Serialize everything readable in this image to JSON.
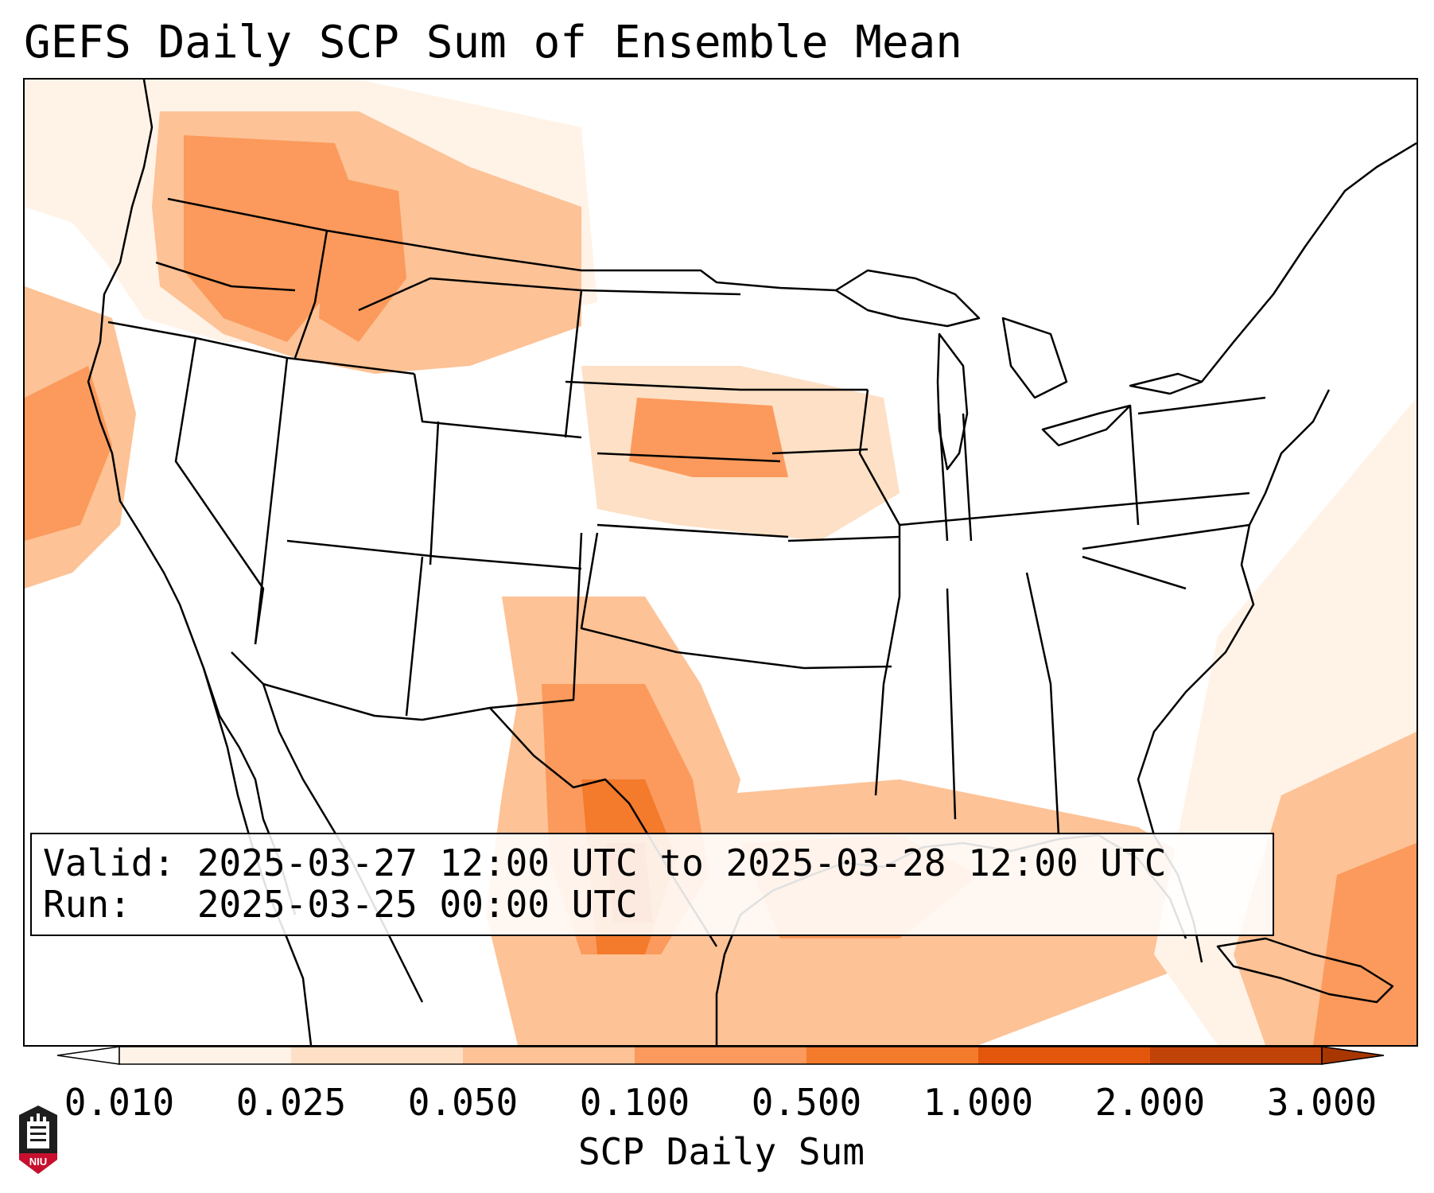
{
  "title": "GEFS Daily SCP Sum of Ensemble Mean",
  "info": {
    "valid": "Valid: 2025-03-27 12:00 UTC to 2025-03-28 12:00 UTC",
    "run": "Run:   2025-03-25 00:00 UTC"
  },
  "colorbar": {
    "label": "SCP Daily Sum",
    "ticks": [
      "0.010",
      "0.025",
      "0.050",
      "0.100",
      "0.500",
      "1.000",
      "2.000",
      "3.000"
    ],
    "colors": [
      "#fff3e8",
      "#fde0c5",
      "#fdc296",
      "#fb9a5c",
      "#f47a2c",
      "#e2570c",
      "#c24308"
    ],
    "under_color": "#ffffff",
    "over_color": "#a83600"
  },
  "logo": {
    "text": "NIU",
    "icon": "university-seal-icon"
  },
  "map": {
    "background": "#ffffff",
    "state_line_color": "#000000"
  }
}
